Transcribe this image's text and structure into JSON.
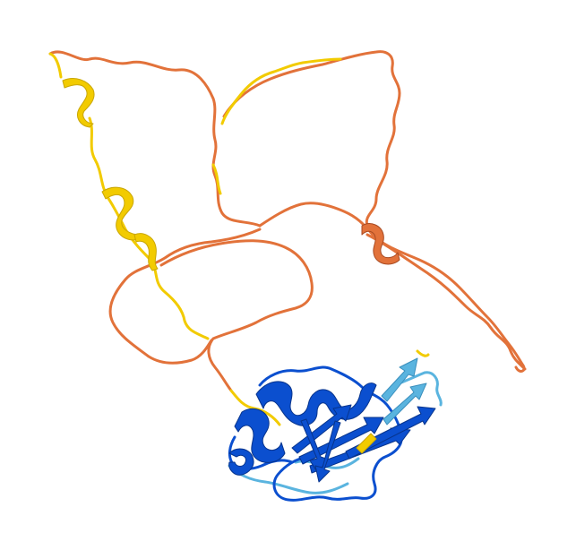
{
  "image": {
    "subject": "",
    "background": "#ffffff"
  },
  "confidence_colors": {
    "very_high": "#0b4fcf",
    "confident": "#5ab4df",
    "low": "#f2cb00",
    "very_low": "#e2723a",
    "very_low_shadow": "#a84a22"
  }
}
